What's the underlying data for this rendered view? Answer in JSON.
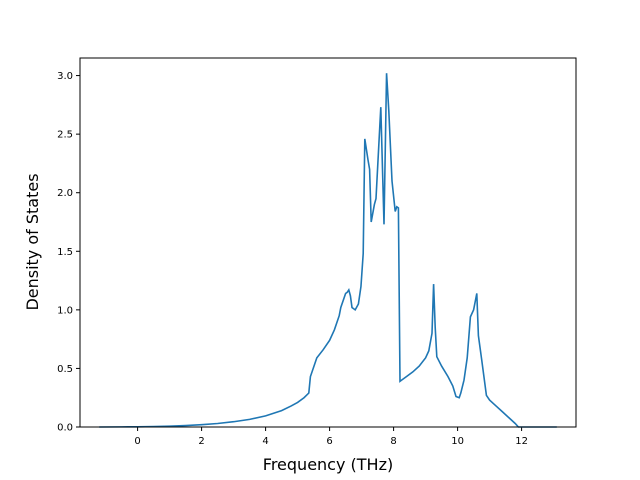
{
  "chart_data": {
    "type": "line",
    "title": "",
    "xlabel": "Frequency (THz)",
    "ylabel": "Density of States",
    "xlim": [
      -1.8,
      13.7
    ],
    "ylim": [
      0,
      3.15
    ],
    "xticks": [
      0,
      2,
      4,
      6,
      8,
      10,
      12
    ],
    "yticks": [
      0.0,
      0.5,
      1.0,
      1.5,
      2.0,
      2.5,
      3.0
    ],
    "xtick_labels": [
      "0",
      "2",
      "4",
      "6",
      "8",
      "10",
      "12"
    ],
    "ytick_labels": [
      "0.0",
      "0.5",
      "1.0",
      "1.5",
      "2.0",
      "2.5",
      "3.0"
    ],
    "grid": false,
    "legend": "none",
    "line_color": "#1f77b4",
    "series": [
      {
        "x": [
          -1.2,
          -0.5,
          0.0,
          0.5,
          1.0,
          1.5,
          2.0,
          2.5,
          3.0,
          3.5,
          4.0,
          4.5,
          4.8,
          5.0,
          5.2,
          5.35,
          5.4,
          5.6,
          5.8,
          6.0,
          6.15,
          6.3,
          6.35,
          6.5,
          6.55,
          6.6,
          6.65,
          6.7,
          6.8,
          6.9,
          6.98,
          7.05,
          7.1,
          7.2,
          7.25,
          7.3,
          7.4,
          7.45,
          7.6,
          7.7,
          7.78,
          7.85,
          7.95,
          8.05,
          8.1,
          8.15,
          8.2,
          8.25,
          8.4,
          8.6,
          8.8,
          9.0,
          9.1,
          9.2,
          9.25,
          9.3,
          9.35,
          9.5,
          9.7,
          9.85,
          9.95,
          10.05,
          10.1,
          10.2,
          10.3,
          10.4,
          10.5,
          10.6,
          10.65,
          10.75,
          10.9,
          11.0,
          11.2,
          11.4,
          11.6,
          11.8,
          11.9,
          12.2,
          13.1
        ],
        "y": [
          0.0,
          0.001,
          0.002,
          0.004,
          0.007,
          0.012,
          0.02,
          0.03,
          0.045,
          0.065,
          0.095,
          0.14,
          0.18,
          0.21,
          0.25,
          0.29,
          0.43,
          0.59,
          0.66,
          0.74,
          0.83,
          0.95,
          1.02,
          1.14,
          1.15,
          1.17,
          1.12,
          1.02,
          1.0,
          1.05,
          1.2,
          1.48,
          2.46,
          2.28,
          2.2,
          1.75,
          1.9,
          1.95,
          2.73,
          1.73,
          3.02,
          2.7,
          2.1,
          1.84,
          1.88,
          1.87,
          0.39,
          0.4,
          0.43,
          0.47,
          0.52,
          0.59,
          0.65,
          0.8,
          1.22,
          0.85,
          0.6,
          0.52,
          0.43,
          0.35,
          0.26,
          0.25,
          0.29,
          0.4,
          0.59,
          0.94,
          1.0,
          1.14,
          0.78,
          0.58,
          0.27,
          0.23,
          0.18,
          0.13,
          0.08,
          0.03,
          0.0,
          0.0,
          0.0
        ]
      }
    ]
  }
}
